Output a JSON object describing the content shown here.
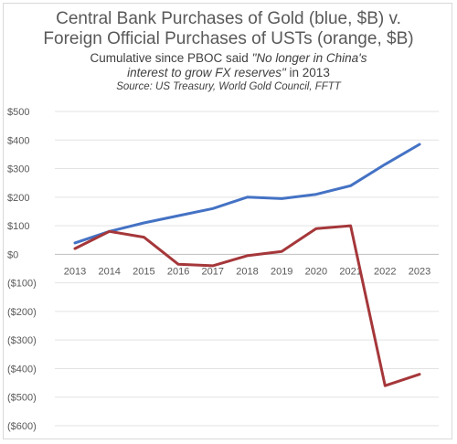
{
  "chart_data": {
    "type": "line",
    "title_line1": "Central Bank Purchases of Gold (blue, $B) v.",
    "title_line2": "Foreign Official Purchases of USTs (orange, $B)",
    "subtitle_pre": "Cumulative since PBOC said ",
    "subtitle_quote_part1": "\"No longer in China's",
    "subtitle_quote_part2": "interest to grow FX reserves\"",
    "subtitle_post": " in 2013",
    "source": "Source: US Treasury, World Gold Council, FFTT",
    "x": [
      "2013",
      "2014",
      "2015",
      "2016",
      "2017",
      "2018",
      "2019",
      "2020",
      "2021",
      "2022",
      "2023"
    ],
    "y_ticks": [
      "$500",
      "$400",
      "$300",
      "$200",
      "$100",
      "$0",
      "($100)",
      "($200)",
      "($300)",
      "($400)",
      "($500)",
      "($600)"
    ],
    "ylim": [
      -600,
      500
    ],
    "grid": true,
    "series": [
      {
        "color": "#4472C4",
        "values": [
          40,
          80,
          110,
          135,
          160,
          200,
          195,
          210,
          240,
          315,
          385
        ]
      },
      {
        "color": "#A5373A",
        "values": [
          20,
          80,
          60,
          -35,
          -40,
          -5,
          10,
          90,
          100,
          -460,
          -420
        ]
      }
    ]
  }
}
